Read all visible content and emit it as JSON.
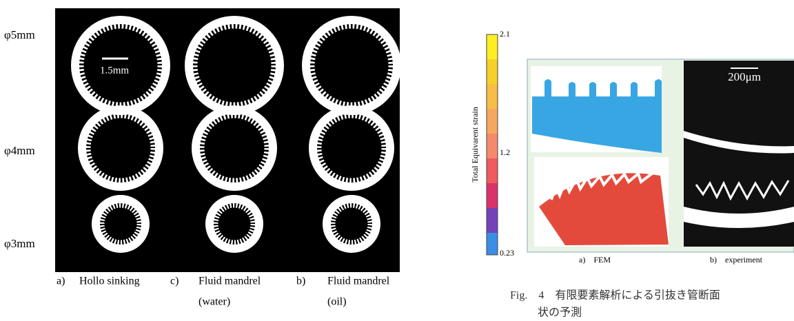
{
  "left_figure": {
    "scale_bar": "1.5mm",
    "row_labels": [
      "φ5mm",
      "φ4mm",
      "φ3mm"
    ],
    "column_labels": [
      [
        "a)",
        "Hollo sinking"
      ],
      [
        "c)",
        "Fluid mandrel",
        "(water)"
      ],
      [
        "b)",
        "Fluid mandrel",
        "(oil)"
      ]
    ]
  },
  "right_figure": {
    "colorbar_label": "Total Equivarent strain",
    "colorbar_ticks": [
      "2.1",
      "1.2",
      "0.23"
    ],
    "scale_bar": "200μm",
    "panel_labels": [
      "a)　FEM",
      "b)　experiment"
    ],
    "caption": [
      "Fig.　4　有限要素解析による引抜き管断面",
      "状の予測"
    ]
  }
}
